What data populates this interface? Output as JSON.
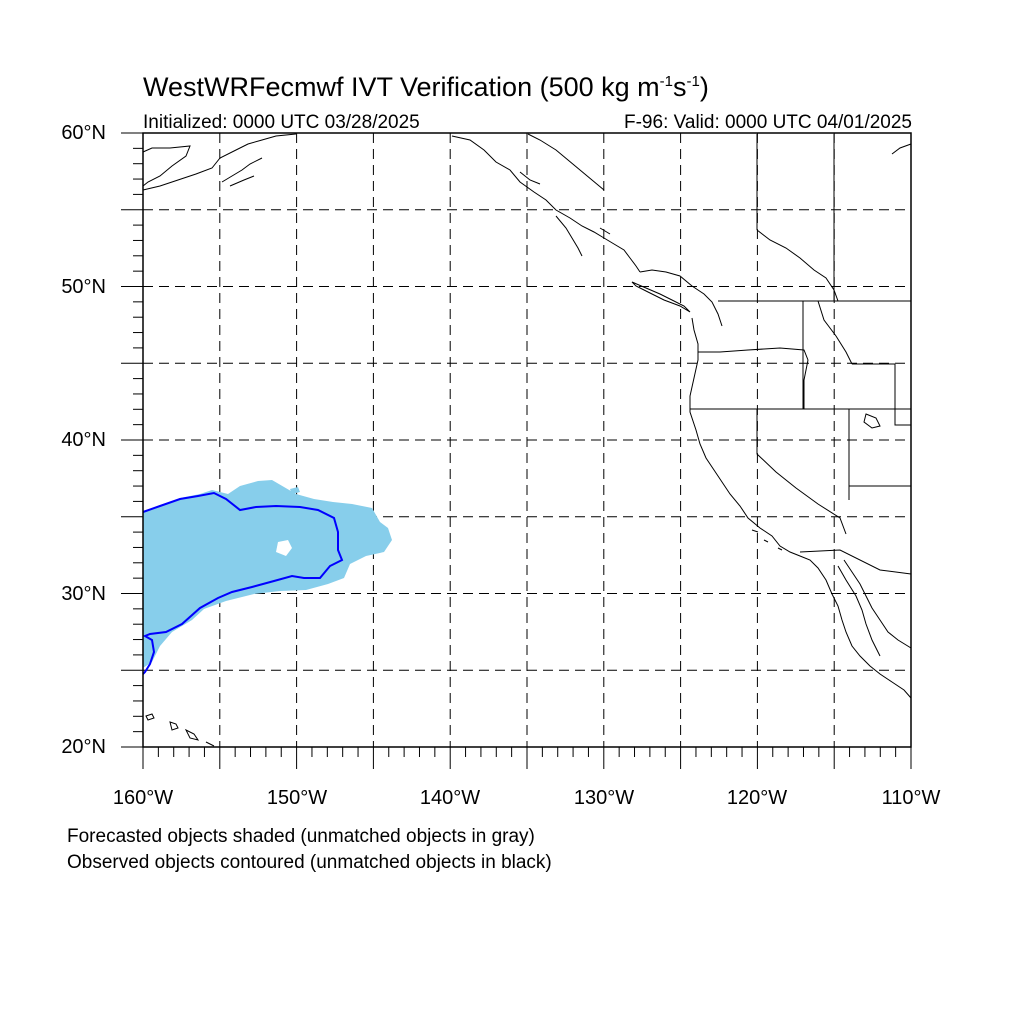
{
  "title": {
    "main": "WestWRFecmwf IVT Verification (500 kg m",
    "sup1": "-1",
    "mid": "s",
    "sup2": "-1",
    "end": ")"
  },
  "initialized": "Initialized: 0000 UTC 03/28/2025",
  "valid": "F-96: Valid: 0000 UTC 04/01/2025",
  "lat_labels": [
    "60°N",
    "50°N",
    "40°N",
    "30°N",
    "20°N"
  ],
  "lon_labels": [
    "160°W",
    "150°W",
    "140°W",
    "130°W",
    "120°W",
    "110°W"
  ],
  "captions": [
    "Forecasted objects shaded (unmatched objects in gray)",
    "Observed objects contoured (unmatched objects in black)"
  ],
  "map": {
    "lon_range": [
      -160,
      -110
    ],
    "lat_range": [
      20,
      60
    ],
    "grid_spacing_deg": 5,
    "colors": {
      "forecast_fill": "#87ceeb",
      "observed_contour": "#0000ff",
      "coast": "#000000",
      "grid": "#000000"
    }
  }
}
